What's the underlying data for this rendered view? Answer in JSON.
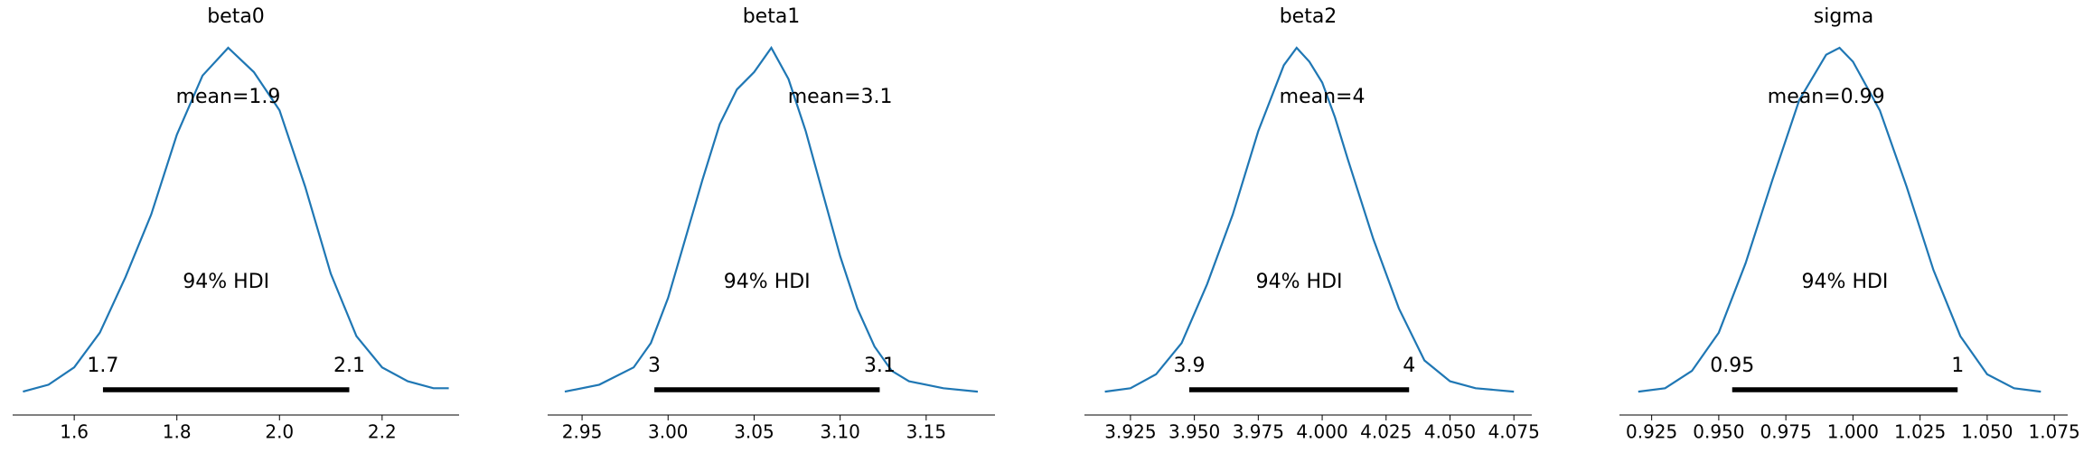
{
  "colors": {
    "density_line": "#1f77b4",
    "hdi_bar": "#000000",
    "background": "#ffffff"
  },
  "chart_data": [
    {
      "type": "line",
      "title": "beta0",
      "xlim": [
        1.48,
        2.35
      ],
      "ticks": [
        1.6,
        1.8,
        2.0,
        2.2
      ],
      "tick_labels": [
        "1.6",
        "1.8",
        "2.0",
        "2.2"
      ],
      "x": [
        1.5,
        1.55,
        1.6,
        1.65,
        1.7,
        1.75,
        1.8,
        1.85,
        1.9,
        1.95,
        2.0,
        2.05,
        2.1,
        2.15,
        2.2,
        2.25,
        2.3,
        2.33
      ],
      "density": [
        0.01,
        0.03,
        0.08,
        0.18,
        0.34,
        0.52,
        0.75,
        0.92,
        1.0,
        0.93,
        0.82,
        0.6,
        0.35,
        0.17,
        0.08,
        0.04,
        0.02,
        0.02
      ],
      "mean": 1.9,
      "mean_label": "mean=1.9",
      "hdi_label": "94% HDI",
      "hdi": [
        1.656,
        2.136
      ],
      "hdi_low_label": "1.7",
      "hdi_high_label": "2.1"
    },
    {
      "type": "line",
      "title": "beta1",
      "xlim": [
        2.93,
        3.19
      ],
      "ticks": [
        2.95,
        3.0,
        3.05,
        3.1,
        3.15
      ],
      "tick_labels": [
        "2.95",
        "3.00",
        "3.05",
        "3.10",
        "3.15"
      ],
      "x": [
        2.94,
        2.96,
        2.98,
        2.99,
        3.0,
        3.01,
        3.02,
        3.03,
        3.04,
        3.05,
        3.06,
        3.07,
        3.08,
        3.09,
        3.1,
        3.11,
        3.12,
        3.13,
        3.14,
        3.16,
        3.18
      ],
      "density": [
        0.01,
        0.03,
        0.08,
        0.15,
        0.28,
        0.45,
        0.62,
        0.78,
        0.88,
        0.93,
        1.0,
        0.91,
        0.76,
        0.58,
        0.4,
        0.25,
        0.14,
        0.07,
        0.04,
        0.02,
        0.01
      ],
      "mean": 3.1,
      "mean_label": "mean=3.1",
      "hdi_label": "94% HDI",
      "hdi": [
        2.992,
        3.123
      ],
      "hdi_low_label": "3",
      "hdi_high_label": "3.1"
    },
    {
      "type": "line",
      "title": "beta2",
      "xlim": [
        3.907,
        4.082
      ],
      "ticks": [
        3.925,
        3.95,
        3.975,
        4.0,
        4.025,
        4.05,
        4.075
      ],
      "tick_labels": [
        "3.925",
        "3.950",
        "3.975",
        "4.000",
        "4.025",
        "4.050",
        "4.075"
      ],
      "x": [
        3.915,
        3.925,
        3.935,
        3.945,
        3.955,
        3.965,
        3.975,
        3.985,
        3.99,
        3.995,
        4.0,
        4.005,
        4.01,
        4.02,
        4.03,
        4.04,
        4.05,
        4.06,
        4.075
      ],
      "density": [
        0.01,
        0.02,
        0.06,
        0.15,
        0.32,
        0.52,
        0.76,
        0.95,
        1.0,
        0.96,
        0.9,
        0.8,
        0.68,
        0.45,
        0.25,
        0.1,
        0.04,
        0.02,
        0.01
      ],
      "mean": 4,
      "mean_label": "mean=4",
      "hdi_label": "94% HDI",
      "hdi": [
        3.948,
        4.034
      ],
      "hdi_low_label": "3.9",
      "hdi_high_label": "4"
    },
    {
      "type": "line",
      "title": "sigma",
      "xlim": [
        0.913,
        1.08
      ],
      "ticks": [
        0.925,
        0.95,
        0.975,
        1.0,
        1.025,
        1.05,
        1.075
      ],
      "tick_labels": [
        "0.925",
        "0.950",
        "0.975",
        "1.000",
        "1.025",
        "1.050",
        "1.075"
      ],
      "x": [
        0.92,
        0.93,
        0.94,
        0.95,
        0.96,
        0.97,
        0.98,
        0.99,
        0.995,
        1.0,
        1.01,
        1.02,
        1.03,
        1.04,
        1.05,
        1.06,
        1.07
      ],
      "density": [
        0.01,
        0.02,
        0.07,
        0.18,
        0.38,
        0.62,
        0.85,
        0.98,
        1.0,
        0.96,
        0.82,
        0.6,
        0.36,
        0.17,
        0.06,
        0.02,
        0.01
      ],
      "mean": 0.99,
      "mean_label": "mean=0.99",
      "hdi_label": "94% HDI",
      "hdi": [
        0.955,
        1.039
      ],
      "hdi_low_label": "0.95",
      "hdi_high_label": "1"
    }
  ]
}
